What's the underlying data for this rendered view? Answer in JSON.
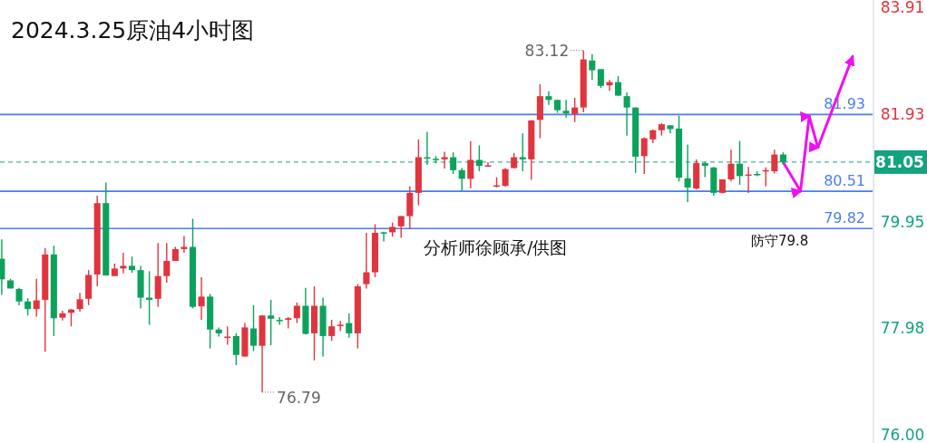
{
  "chart_data": {
    "type": "candlestick",
    "title": "2024.3.25原油4小时图",
    "annotations": [
      "分析师徐顾承/供图",
      "防守79.8",
      "83.12",
      "76.79"
    ],
    "categories": [
      null,
      null,
      null,
      null,
      null,
      null,
      null,
      null,
      null,
      null,
      null,
      null,
      null,
      null,
      null,
      null,
      null,
      null,
      null,
      null,
      null,
      null,
      null,
      null,
      null,
      null,
      null,
      null,
      null,
      null,
      null,
      null,
      null,
      null,
      null,
      null,
      null,
      null,
      null,
      null,
      null,
      null,
      null,
      null,
      null,
      null,
      null,
      null,
      null,
      null,
      null,
      null,
      null,
      null,
      null,
      null,
      null,
      null,
      null,
      null,
      null,
      null,
      null,
      null,
      null,
      null,
      null,
      null,
      null,
      null,
      null,
      null,
      null,
      null,
      null,
      null,
      null,
      null,
      null,
      null,
      null,
      null,
      null,
      null,
      null,
      null,
      null,
      null,
      null,
      null,
      null,
      null,
      null,
      null,
      null,
      null,
      null,
      null,
      null,
      null,
      null
    ],
    "ohlc": [
      [
        79.26,
        79.62,
        78.59,
        78.88
      ],
      [
        78.86,
        78.89,
        78.71,
        78.71
      ],
      [
        78.7,
        78.72,
        78.4,
        78.47
      ],
      [
        78.47,
        78.53,
        78.21,
        78.33
      ],
      [
        78.33,
        78.89,
        78.19,
        78.49
      ],
      [
        78.5,
        79.46,
        77.54,
        79.34
      ],
      [
        79.34,
        79.5,
        77.83,
        78.16
      ],
      [
        78.17,
        78.3,
        78.12,
        78.25
      ],
      [
        78.26,
        78.33,
        78.01,
        78.32
      ],
      [
        78.33,
        78.63,
        78.28,
        78.51
      ],
      [
        78.52,
        79.05,
        78.4,
        78.96
      ],
      [
        78.97,
        80.43,
        78.75,
        80.29
      ],
      [
        80.29,
        80.67,
        78.95,
        78.95
      ],
      [
        78.94,
        79.17,
        78.94,
        79.08
      ],
      [
        79.08,
        79.37,
        78.99,
        79.13
      ],
      [
        79.13,
        79.3,
        79.0,
        79.05
      ],
      [
        79.05,
        79.13,
        78.34,
        78.54
      ],
      [
        78.54,
        79.03,
        78.04,
        78.5
      ],
      [
        78.52,
        79.55,
        78.37,
        78.94
      ],
      [
        78.94,
        79.55,
        78.82,
        79.22
      ],
      [
        79.22,
        79.48,
        79.22,
        79.44
      ],
      [
        79.44,
        79.68,
        79.37,
        79.48
      ],
      [
        79.48,
        80.0,
        78.34,
        78.37
      ],
      [
        78.38,
        78.92,
        78.13,
        78.56
      ],
      [
        78.56,
        78.61,
        77.6,
        77.95
      ],
      [
        77.95,
        77.99,
        77.82,
        77.88
      ],
      [
        77.81,
        78.01,
        77.67,
        77.82
      ],
      [
        77.83,
        77.88,
        77.29,
        77.48
      ],
      [
        77.45,
        78.07,
        77.45,
        77.99
      ],
      [
        77.97,
        78.4,
        77.55,
        77.65
      ],
      [
        77.65,
        78.22,
        76.79,
        78.21
      ],
      [
        78.21,
        78.5,
        77.66,
        78.15
      ],
      [
        78.13,
        78.18,
        78.04,
        78.11
      ],
      [
        78.13,
        78.18,
        77.97,
        78.16
      ],
      [
        78.16,
        78.45,
        78.07,
        78.39
      ],
      [
        78.39,
        78.72,
        77.86,
        77.87
      ],
      [
        77.88,
        78.75,
        77.38,
        78.39
      ],
      [
        78.39,
        78.54,
        77.45,
        77.83
      ],
      [
        77.83,
        78.13,
        77.74,
        78.01
      ],
      [
        78.02,
        78.11,
        77.92,
        78.04
      ],
      [
        78.07,
        78.25,
        77.8,
        77.88
      ],
      [
        77.88,
        78.79,
        77.6,
        78.75
      ],
      [
        78.79,
        79.74,
        78.71,
        79.01
      ],
      [
        79.01,
        79.9,
        78.92,
        79.74
      ],
      [
        79.75,
        79.76,
        79.58,
        79.73
      ],
      [
        79.75,
        79.93,
        79.67,
        79.85
      ],
      [
        79.86,
        80.05,
        79.65,
        80.05
      ],
      [
        80.05,
        80.6,
        79.82,
        80.48
      ],
      [
        80.48,
        81.47,
        80.25,
        81.14
      ],
      [
        81.14,
        81.61,
        81.0,
        81.12
      ],
      [
        81.11,
        81.16,
        81.03,
        81.1
      ],
      [
        81.1,
        81.24,
        80.93,
        81.14
      ],
      [
        81.14,
        81.23,
        80.83,
        80.9
      ],
      [
        80.9,
        80.94,
        80.51,
        80.74
      ],
      [
        80.74,
        81.44,
        80.56,
        81.09
      ],
      [
        81.09,
        81.36,
        80.88,
        80.98
      ],
      [
        80.98,
        81.05,
        80.98,
        80.99
      ],
      [
        80.61,
        80.77,
        80.58,
        80.62
      ],
      [
        80.61,
        80.94,
        80.59,
        80.92
      ],
      [
        80.94,
        81.22,
        80.93,
        81.14
      ],
      [
        81.14,
        81.58,
        80.88,
        81.1
      ],
      [
        81.1,
        81.83,
        80.72,
        81.82
      ],
      [
        81.83,
        82.49,
        81.49,
        82.27
      ],
      [
        82.27,
        82.36,
        82.11,
        82.2
      ],
      [
        82.2,
        82.21,
        81.96,
        82.01
      ],
      [
        82.0,
        82.2,
        81.87,
        81.95
      ],
      [
        81.94,
        82.24,
        81.79,
        82.06
      ],
      [
        82.06,
        83.12,
        81.97,
        82.95
      ],
      [
        82.93,
        83.05,
        82.57,
        82.75
      ],
      [
        82.77,
        82.77,
        82.42,
        82.46
      ],
      [
        82.47,
        82.57,
        82.37,
        82.53
      ],
      [
        82.53,
        82.64,
        82.27,
        82.28
      ],
      [
        82.27,
        82.34,
        81.54,
        82.06
      ],
      [
        82.06,
        82.06,
        80.85,
        81.15
      ],
      [
        81.16,
        81.51,
        80.83,
        81.49
      ],
      [
        81.47,
        81.65,
        81.4,
        81.64
      ],
      [
        81.64,
        81.77,
        81.54,
        81.75
      ],
      [
        81.73,
        81.73,
        81.58,
        81.66
      ],
      [
        81.67,
        81.91,
        80.69,
        80.76
      ],
      [
        80.75,
        81.37,
        80.31,
        80.58
      ],
      [
        80.56,
        81.1,
        80.54,
        81.03
      ],
      [
        81.03,
        81.05,
        80.77,
        80.98
      ],
      [
        80.95,
        80.96,
        80.43,
        80.48
      ],
      [
        80.48,
        80.73,
        80.47,
        80.73
      ],
      [
        80.73,
        81.28,
        80.69,
        81.02
      ],
      [
        81.02,
        81.44,
        80.63,
        80.79
      ],
      [
        80.8,
        80.96,
        80.48,
        80.82
      ],
      [
        80.83,
        80.88,
        80.79,
        80.81
      ],
      [
        80.88,
        80.95,
        80.6,
        80.9
      ],
      [
        80.88,
        81.28,
        80.84,
        81.19
      ],
      [
        81.19,
        81.23,
        81.0,
        81.05
      ],
      null,
      null,
      null,
      null,
      null,
      null,
      null,
      null,
      null,
      null
    ],
    "series": [
      {
        "type": "line",
        "color": "#ee11ee",
        "values": [
          null,
          null,
          null,
          null,
          null,
          null,
          null,
          null,
          null,
          null,
          null,
          null,
          null,
          null,
          null,
          null,
          null,
          null,
          null,
          null,
          null,
          null,
          null,
          null,
          null,
          null,
          null,
          null,
          null,
          null,
          null,
          null,
          null,
          null,
          null,
          null,
          null,
          null,
          null,
          null,
          null,
          null,
          null,
          null,
          null,
          null,
          null,
          null,
          null,
          null,
          null,
          null,
          null,
          null,
          null,
          null,
          null,
          null,
          null,
          null,
          null,
          null,
          null,
          null,
          null,
          null,
          null,
          null,
          null,
          null,
          null,
          null,
          null,
          null,
          null,
          null,
          null,
          null,
          null,
          null,
          null,
          null,
          null,
          null,
          null,
          null,
          null,
          null,
          null,
          null,
          81.05,
          null,
          80.51,
          81.9,
          81.32,
          null,
          null,
          null,
          83.0,
          null,
          null
        ]
      }
    ],
    "ylim": [
      75.85,
      84.05
    ],
    "yticks": [
      {
        "value": 76,
        "label": "76.00"
      },
      {
        "value": 77.98,
        "label": "77.98"
      },
      {
        "value": 79.95,
        "label": "79.95"
      },
      {
        "value": 81.93,
        "label": "81.93"
      },
      {
        "value": 83.91,
        "label": "83.91"
      }
    ],
    "ref_lines": [
      {
        "axis": "y",
        "value": 81.93,
        "label": "81.93",
        "color": "#4a7cf0"
      },
      {
        "axis": "y",
        "value": 80.51,
        "label": "80.51",
        "color": "#4a7cf0"
      },
      {
        "axis": "y",
        "value": 79.82,
        "label": "79.82",
        "color": "#4a7cf0"
      },
      {
        "axis": "y",
        "value": 81.05,
        "label": "81.05",
        "color": "#12a37f",
        "line_style": "dashed"
      }
    ],
    "tick_labels": "y",
    "grid": false
  }
}
